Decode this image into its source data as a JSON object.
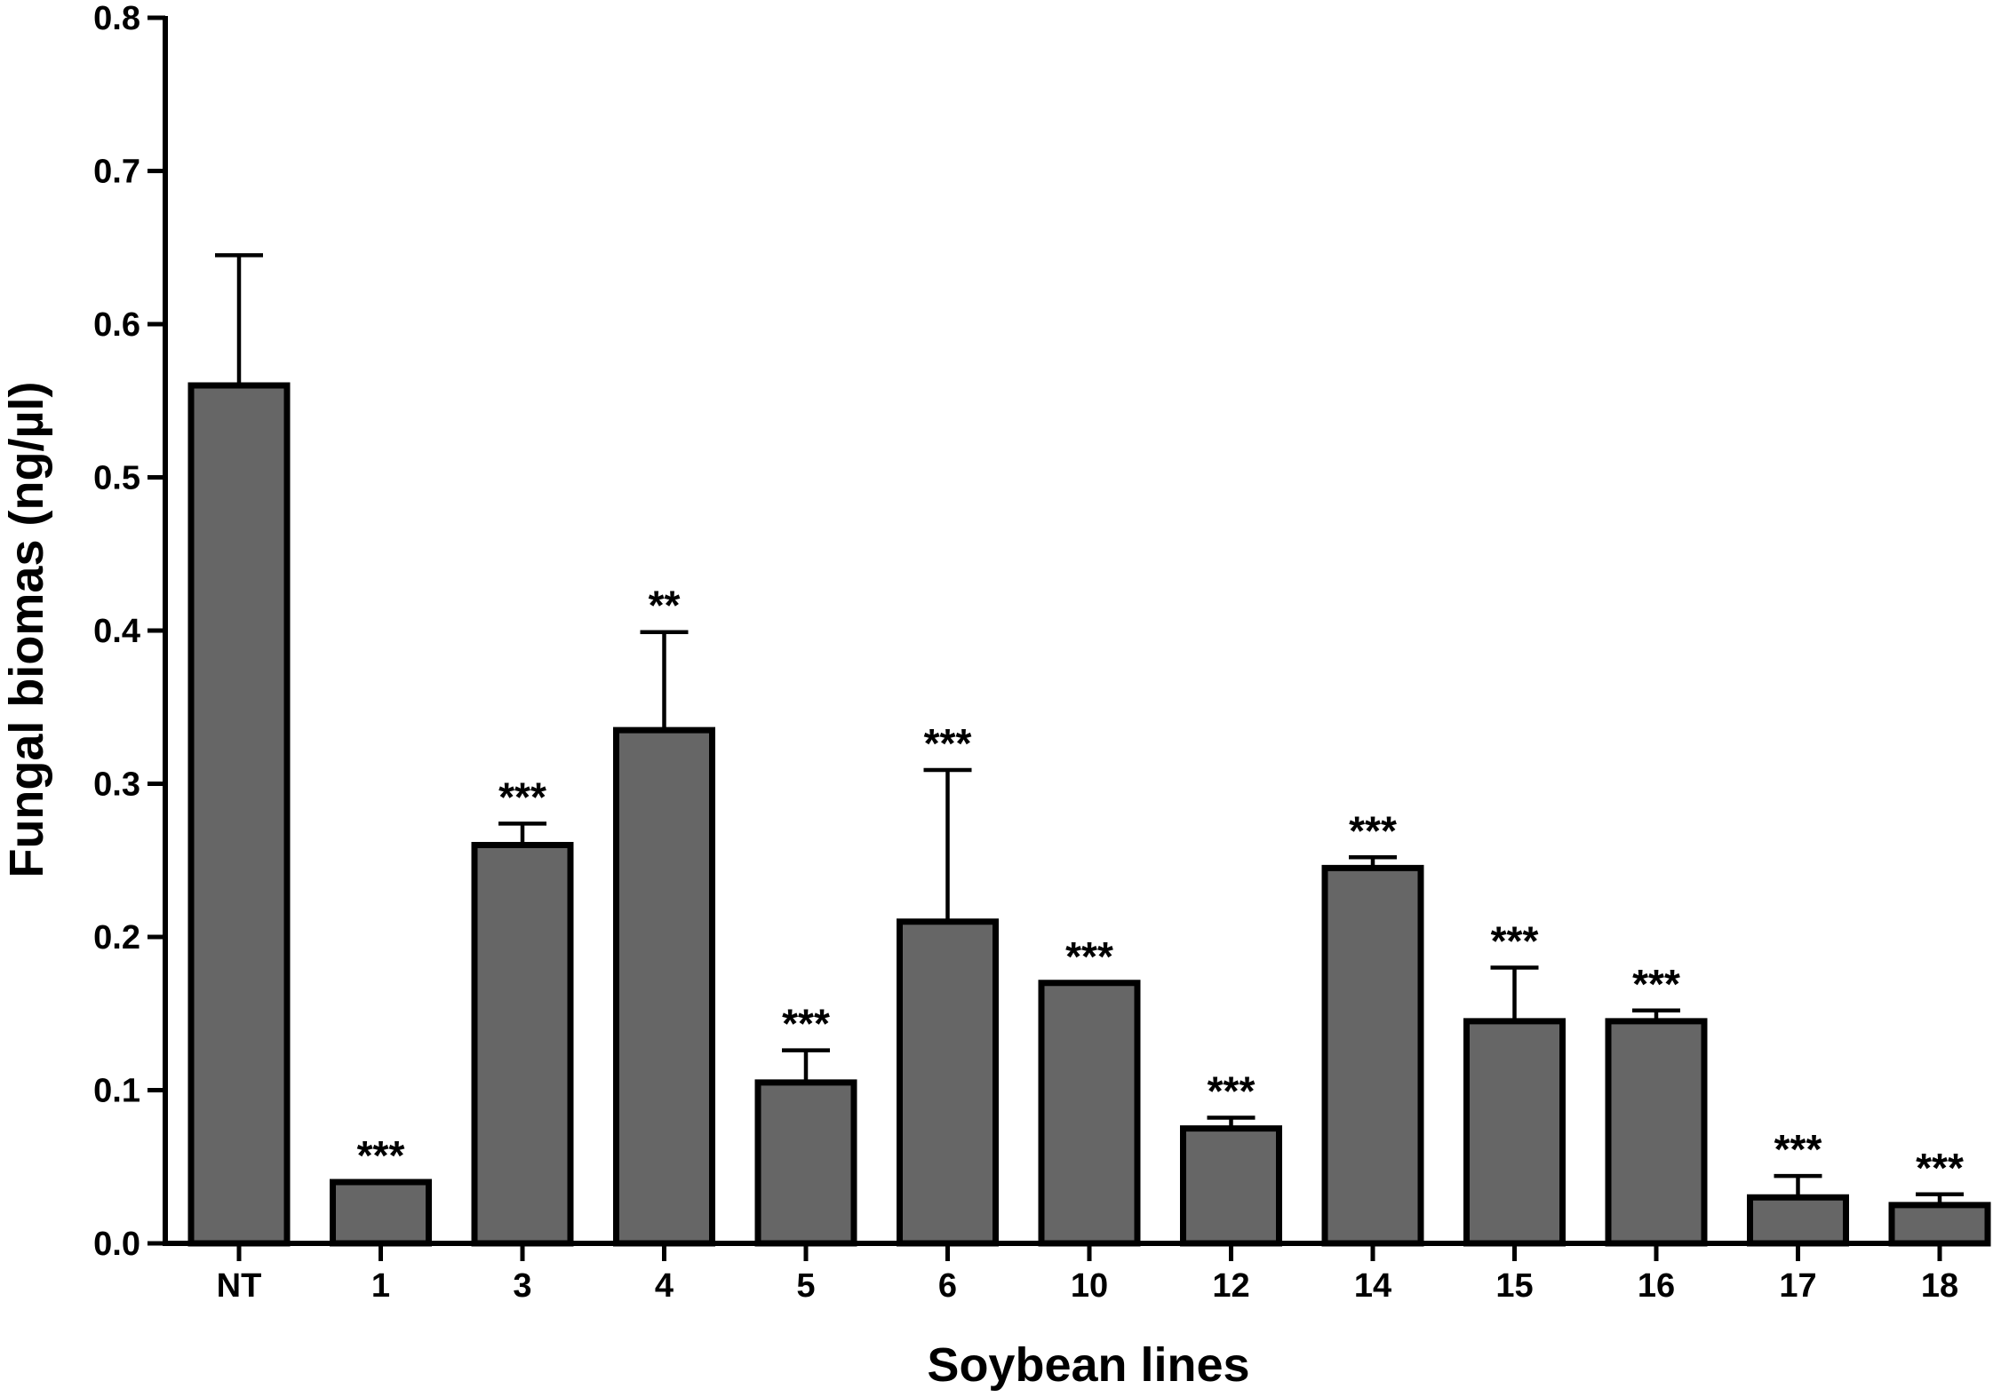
{
  "chart_data": {
    "type": "bar",
    "xlabel": "Soybean lines",
    "ylabel": "Fungal biomas (ng/µl)",
    "ylim": [
      0,
      0.8
    ],
    "yticks": [
      "0.0",
      "0.1",
      "0.2",
      "0.3",
      "0.4",
      "0.5",
      "0.6",
      "0.7",
      "0.8"
    ],
    "categories": [
      "NT",
      "1",
      "3",
      "4",
      "5",
      "6",
      "10",
      "12",
      "14",
      "15",
      "16",
      "17",
      "18"
    ],
    "values": [
      0.56,
      0.04,
      0.26,
      0.335,
      0.105,
      0.21,
      0.17,
      0.075,
      0.245,
      0.145,
      0.145,
      0.03,
      0.025
    ],
    "error_upper": [
      0.645,
      0.04,
      0.274,
      0.399,
      0.126,
      0.309,
      0.17,
      0.082,
      0.252,
      0.18,
      0.152,
      0.044,
      0.032
    ],
    "significance": [
      "",
      "***",
      "***",
      "**",
      "***",
      "***",
      "***",
      "***",
      "***",
      "***",
      "***",
      "***",
      "***"
    ],
    "bar_color": "#666666",
    "grid": false,
    "legend": "none"
  }
}
